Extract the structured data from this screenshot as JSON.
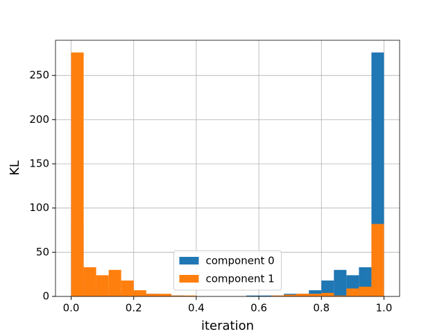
{
  "chart_data": {
    "type": "histogram",
    "xlabel": "iteration",
    "ylabel": "KL",
    "bins": [
      0,
      0.04,
      0.08,
      0.12,
      0.16,
      0.2,
      0.24,
      0.28,
      0.32,
      0.36,
      0.4,
      0.44,
      0.48,
      0.52,
      0.56,
      0.6,
      0.64,
      0.68,
      0.72,
      0.76,
      0.8,
      0.84,
      0.88,
      0.92,
      0.96,
      1
    ],
    "series": [
      {
        "name": "component 0",
        "color": "#1f77b4",
        "values": [
          82,
          11,
          9,
          1,
          4,
          3,
          3,
          2,
          1,
          0,
          0,
          0,
          0,
          0,
          1,
          1,
          1,
          3,
          3,
          7,
          18,
          30,
          24,
          33,
          276
        ]
      },
      {
        "name": "component 1",
        "color": "#ff7f0e",
        "values": [
          276,
          33,
          24,
          30,
          18,
          7,
          3,
          3,
          1,
          1,
          0,
          0,
          0,
          0,
          0,
          0,
          1,
          2,
          3,
          3,
          4,
          1,
          9,
          11,
          82
        ]
      }
    ],
    "xlim": [
      -0.05,
      1.05
    ],
    "xticks": [
      {
        "value": 0,
        "label": "0.0"
      },
      0.2,
      0.4,
      0.6,
      0.8,
      {
        "value": 1,
        "label": "1.0"
      }
    ],
    "ylim": [
      0,
      289.8
    ],
    "yticks": [
      0,
      50,
      100,
      150,
      200,
      250
    ],
    "grid": true,
    "legend": "lower center"
  }
}
